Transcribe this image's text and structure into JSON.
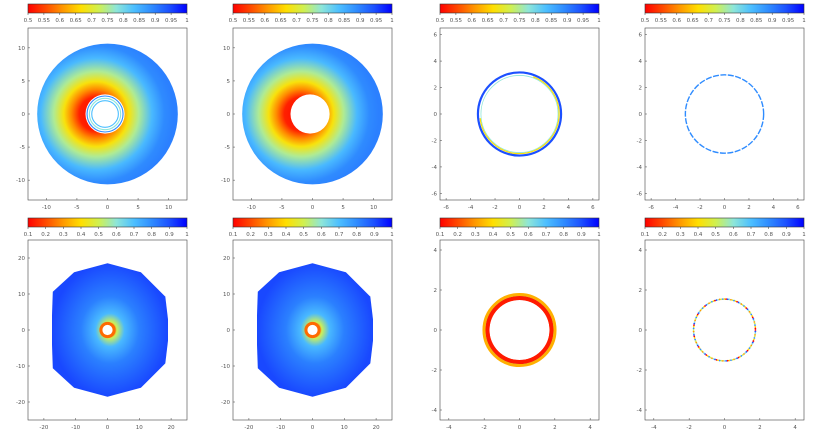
{
  "chart_data": [
    {
      "type": "heatmap",
      "panel": "top-1",
      "colorbar_ticks": [
        "0.5",
        "0.55",
        "0.6",
        "0.65",
        "0.7",
        "0.75",
        "0.8",
        "0.85",
        "0.9",
        "0.95",
        "1"
      ],
      "x_ticks": [
        "-10",
        "-5",
        "0",
        "5",
        "10"
      ],
      "y_ticks": [
        "10",
        "5",
        "0",
        "-5",
        "-10"
      ],
      "xlim": [
        -13,
        13
      ],
      "ylim": [
        -13,
        13
      ],
      "shape": "annulus",
      "outer_radius": 11.5,
      "inner_radius": 3.2,
      "inner_offset_x": -0.4,
      "hole_rings": true
    },
    {
      "type": "heatmap",
      "panel": "top-2",
      "colorbar_ticks": [
        "0.5",
        "0.55",
        "0.6",
        "0.65",
        "0.7",
        "0.75",
        "0.8",
        "0.85",
        "0.9",
        "0.95",
        "1"
      ],
      "x_ticks": [
        "-10",
        "-5",
        "0",
        "5",
        "10"
      ],
      "y_ticks": [
        "10",
        "5",
        "0",
        "-5",
        "-10"
      ],
      "xlim": [
        -13,
        13
      ],
      "ylim": [
        -13,
        13
      ],
      "shape": "annulus",
      "outer_radius": 11.5,
      "inner_radius": 3.2,
      "inner_offset_x": -0.4,
      "hole_rings": false
    },
    {
      "type": "heatmap",
      "panel": "top-3",
      "colorbar_ticks": [
        "0.5",
        "0.55",
        "0.6",
        "0.65",
        "0.7",
        "0.75",
        "0.8",
        "0.85",
        "0.9",
        "0.95",
        "1"
      ],
      "x_ticks": [
        "-6",
        "-4",
        "-2",
        "0",
        "2",
        "4",
        "6"
      ],
      "y_ticks": [
        "6",
        "4",
        "2",
        "0",
        "-2",
        "-4",
        "-6"
      ],
      "xlim": [
        -6.5,
        6.5
      ],
      "ylim": [
        -6.5,
        6.5
      ],
      "shape": "thin-ring",
      "ring_radius": 3.3,
      "ring_width": 0.2
    },
    {
      "type": "heatmap",
      "panel": "top-4",
      "colorbar_ticks": [
        "0.5",
        "0.55",
        "0.6",
        "0.65",
        "0.7",
        "0.75",
        "0.8",
        "0.85",
        "0.9",
        "0.95",
        "1"
      ],
      "x_ticks": [
        "-6",
        "-4",
        "-2",
        "0",
        "2",
        "4",
        "6"
      ],
      "y_ticks": [
        "6",
        "4",
        "2",
        "0",
        "-2",
        "-4",
        "-6"
      ],
      "xlim": [
        -6.5,
        6.5
      ],
      "ylim": [
        -6.5,
        6.5
      ],
      "shape": "dotted-ring",
      "ring_radius": 3.2
    },
    {
      "type": "heatmap",
      "panel": "bottom-1",
      "colorbar_ticks": [
        "0.1",
        "0.2",
        "0.3",
        "0.4",
        "0.5",
        "0.6",
        "0.7",
        "0.8",
        "0.9",
        "1"
      ],
      "x_ticks": [
        "-20",
        "-10",
        "0",
        "10",
        "20"
      ],
      "y_ticks": [
        "20",
        "10",
        "0",
        "-10",
        "-20"
      ],
      "xlim": [
        -25,
        25
      ],
      "ylim": [
        -25,
        25
      ],
      "shape": "polygon-disc",
      "outer_radius": 21,
      "inner_radius": 1.6
    },
    {
      "type": "heatmap",
      "panel": "bottom-2",
      "colorbar_ticks": [
        "0.1",
        "0.2",
        "0.3",
        "0.4",
        "0.5",
        "0.6",
        "0.7",
        "0.8",
        "0.9",
        "1"
      ],
      "x_ticks": [
        "-20",
        "-10",
        "0",
        "10",
        "20"
      ],
      "y_ticks": [
        "20",
        "10",
        "0",
        "-10",
        "-20"
      ],
      "xlim": [
        -25,
        25
      ],
      "ylim": [
        -25,
        25
      ],
      "shape": "polygon-disc",
      "outer_radius": 21,
      "inner_radius": 1.6
    },
    {
      "type": "heatmap",
      "panel": "bottom-3",
      "colorbar_ticks": [
        "0.1",
        "0.2",
        "0.3",
        "0.4",
        "0.5",
        "0.6",
        "0.7",
        "0.8",
        "0.9",
        "1"
      ],
      "x_ticks": [
        "-4",
        "-2",
        "0",
        "2",
        "4"
      ],
      "y_ticks": [
        "4",
        "2",
        "0",
        "-2",
        "-4"
      ],
      "xlim": [
        -4.5,
        4.5
      ],
      "ylim": [
        -4.5,
        4.5
      ],
      "shape": "thick-ring",
      "outer_radius": 2.05,
      "inner_radius": 1.7
    },
    {
      "type": "heatmap",
      "panel": "bottom-4",
      "colorbar_ticks": [
        "0.1",
        "0.2",
        "0.3",
        "0.4",
        "0.5",
        "0.6",
        "0.7",
        "0.8",
        "0.9",
        "1"
      ],
      "x_ticks": [
        "-4",
        "-2",
        "0",
        "2",
        "4"
      ],
      "y_ticks": [
        "4",
        "2",
        "0",
        "-2",
        "-4"
      ],
      "xlim": [
        -4.5,
        4.5
      ],
      "ylim": [
        -4.5,
        4.5
      ],
      "shape": "speckled-ring",
      "ring_radius": 1.75
    }
  ],
  "colormap": [
    "#ff0000",
    "#ff4a00",
    "#ff9a00",
    "#ffdf00",
    "#d0f050",
    "#8ee6d8",
    "#4cbfff",
    "#2f8cff",
    "#1c50ff",
    "#0000ff"
  ]
}
